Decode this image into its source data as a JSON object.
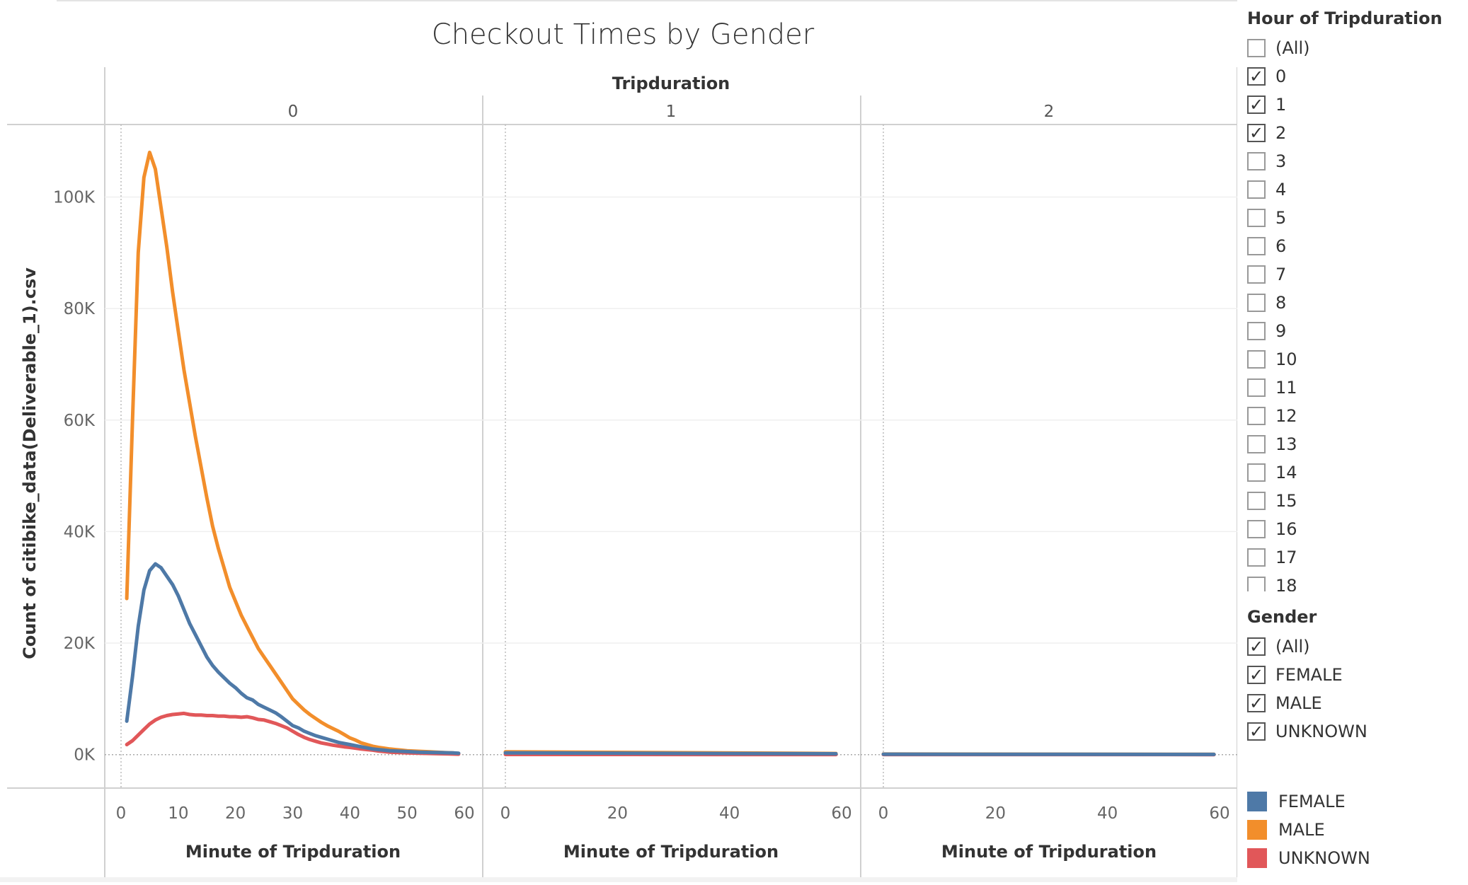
{
  "chart_data": {
    "type": "line",
    "title": "Checkout Times by Gender",
    "column_header": "Tripduration",
    "panes": [
      "0",
      "1",
      "2"
    ],
    "xlabel": "Minute of Tripduration",
    "ylabel": "Count of citibike_data(Deliverable_1).csv",
    "ylim": [
      -6000,
      113000
    ],
    "yticks": [
      0,
      20000,
      40000,
      60000,
      80000,
      100000
    ],
    "ytick_labels": [
      "0K",
      "20K",
      "40K",
      "60K",
      "80K",
      "100K"
    ],
    "pane0_xticks": [
      0,
      10,
      20,
      30,
      40,
      50,
      60
    ],
    "pane_xticks": [
      0,
      20,
      40,
      60
    ],
    "series": [
      {
        "name": "FEMALE",
        "color": "#4e79a7",
        "pane0": [
          [
            1,
            6000
          ],
          [
            2,
            14000
          ],
          [
            3,
            23000
          ],
          [
            4,
            29500
          ],
          [
            5,
            33000
          ],
          [
            6,
            34200
          ],
          [
            7,
            33500
          ],
          [
            8,
            32000
          ],
          [
            9,
            30500
          ],
          [
            10,
            28500
          ],
          [
            11,
            26000
          ],
          [
            12,
            23500
          ],
          [
            13,
            21500
          ],
          [
            14,
            19500
          ],
          [
            15,
            17500
          ],
          [
            16,
            16000
          ],
          [
            17,
            14800
          ],
          [
            18,
            13800
          ],
          [
            19,
            12800
          ],
          [
            20,
            12000
          ],
          [
            21,
            11000
          ],
          [
            22,
            10200
          ],
          [
            23,
            9800
          ],
          [
            24,
            9000
          ],
          [
            25,
            8500
          ],
          [
            26,
            8000
          ],
          [
            27,
            7500
          ],
          [
            28,
            6800
          ],
          [
            29,
            6000
          ],
          [
            30,
            5200
          ],
          [
            31,
            4800
          ],
          [
            32,
            4200
          ],
          [
            33,
            3800
          ],
          [
            34,
            3400
          ],
          [
            35,
            3100
          ],
          [
            36,
            2800
          ],
          [
            37,
            2500
          ],
          [
            38,
            2200
          ],
          [
            39,
            2000
          ],
          [
            40,
            1800
          ],
          [
            41,
            1600
          ],
          [
            42,
            1400
          ],
          [
            43,
            1200
          ],
          [
            44,
            1000
          ],
          [
            45,
            900
          ],
          [
            46,
            800
          ],
          [
            47,
            700
          ],
          [
            48,
            650
          ],
          [
            49,
            600
          ],
          [
            50,
            550
          ],
          [
            52,
            450
          ],
          [
            54,
            400
          ],
          [
            56,
            350
          ],
          [
            58,
            300
          ],
          [
            59,
            250
          ]
        ],
        "pane1": [
          [
            0,
            300
          ],
          [
            59,
            150
          ]
        ],
        "pane2": [
          [
            0,
            80
          ],
          [
            59,
            40
          ]
        ]
      },
      {
        "name": "MALE",
        "color": "#f28e2b",
        "pane0": [
          [
            1,
            28000
          ],
          [
            2,
            60000
          ],
          [
            3,
            90000
          ],
          [
            4,
            103500
          ],
          [
            5,
            108000
          ],
          [
            6,
            105000
          ],
          [
            7,
            98000
          ],
          [
            8,
            91000
          ],
          [
            9,
            83000
          ],
          [
            10,
            76000
          ],
          [
            11,
            69000
          ],
          [
            12,
            63000
          ],
          [
            13,
            57000
          ],
          [
            14,
            51500
          ],
          [
            15,
            46000
          ],
          [
            16,
            41000
          ],
          [
            17,
            37000
          ],
          [
            18,
            33500
          ],
          [
            19,
            30000
          ],
          [
            20,
            27500
          ],
          [
            21,
            25000
          ],
          [
            22,
            23000
          ],
          [
            23,
            21000
          ],
          [
            24,
            19000
          ],
          [
            25,
            17500
          ],
          [
            26,
            16000
          ],
          [
            27,
            14500
          ],
          [
            28,
            13000
          ],
          [
            29,
            11500
          ],
          [
            30,
            10000
          ],
          [
            31,
            9000
          ],
          [
            32,
            8000
          ],
          [
            33,
            7200
          ],
          [
            34,
            6500
          ],
          [
            35,
            5800
          ],
          [
            36,
            5200
          ],
          [
            37,
            4700
          ],
          [
            38,
            4200
          ],
          [
            39,
            3600
          ],
          [
            40,
            3000
          ],
          [
            41,
            2600
          ],
          [
            42,
            2100
          ],
          [
            43,
            1800
          ],
          [
            44,
            1500
          ],
          [
            45,
            1300
          ],
          [
            46,
            1150
          ],
          [
            47,
            1000
          ],
          [
            48,
            900
          ],
          [
            49,
            800
          ],
          [
            50,
            700
          ],
          [
            52,
            600
          ],
          [
            54,
            500
          ],
          [
            56,
            400
          ],
          [
            58,
            300
          ],
          [
            59,
            200
          ]
        ],
        "pane1": [
          [
            0,
            500
          ],
          [
            59,
            200
          ]
        ],
        "pane2": [
          [
            0,
            100
          ],
          [
            59,
            50
          ]
        ]
      },
      {
        "name": "UNKNOWN",
        "color": "#e15759",
        "pane0": [
          [
            1,
            1800
          ],
          [
            2,
            2500
          ],
          [
            3,
            3500
          ],
          [
            4,
            4500
          ],
          [
            5,
            5500
          ],
          [
            6,
            6200
          ],
          [
            7,
            6700
          ],
          [
            8,
            7000
          ],
          [
            9,
            7200
          ],
          [
            10,
            7300
          ],
          [
            11,
            7400
          ],
          [
            12,
            7200
          ],
          [
            13,
            7100
          ],
          [
            14,
            7100
          ],
          [
            15,
            7000
          ],
          [
            16,
            7000
          ],
          [
            17,
            6900
          ],
          [
            18,
            6900
          ],
          [
            19,
            6800
          ],
          [
            20,
            6800
          ],
          [
            21,
            6700
          ],
          [
            22,
            6800
          ],
          [
            23,
            6600
          ],
          [
            24,
            6300
          ],
          [
            25,
            6200
          ],
          [
            26,
            5900
          ],
          [
            27,
            5600
          ],
          [
            28,
            5200
          ],
          [
            29,
            4800
          ],
          [
            30,
            4200
          ],
          [
            31,
            3600
          ],
          [
            32,
            3100
          ],
          [
            33,
            2700
          ],
          [
            34,
            2400
          ],
          [
            35,
            2100
          ],
          [
            36,
            1900
          ],
          [
            37,
            1700
          ],
          [
            38,
            1550
          ],
          [
            39,
            1400
          ],
          [
            40,
            1300
          ],
          [
            41,
            1150
          ],
          [
            42,
            1000
          ],
          [
            43,
            900
          ],
          [
            44,
            800
          ],
          [
            45,
            650
          ],
          [
            46,
            550
          ],
          [
            47,
            450
          ],
          [
            48,
            400
          ],
          [
            49,
            350
          ],
          [
            50,
            300
          ],
          [
            52,
            250
          ],
          [
            54,
            200
          ],
          [
            56,
            150
          ],
          [
            58,
            100
          ],
          [
            59,
            80
          ]
        ],
        "pane1": [
          [
            0,
            30
          ],
          [
            59,
            10
          ]
        ],
        "pane2": [
          [
            0,
            10
          ],
          [
            59,
            5
          ]
        ]
      }
    ]
  },
  "filters": {
    "hour": {
      "title": "Hour of Tripduration",
      "items": [
        {
          "label": "(All)",
          "checked": false
        },
        {
          "label": "0",
          "checked": true
        },
        {
          "label": "1",
          "checked": true
        },
        {
          "label": "2",
          "checked": true
        },
        {
          "label": "3",
          "checked": false
        },
        {
          "label": "4",
          "checked": false
        },
        {
          "label": "5",
          "checked": false
        },
        {
          "label": "6",
          "checked": false
        },
        {
          "label": "7",
          "checked": false
        },
        {
          "label": "8",
          "checked": false
        },
        {
          "label": "9",
          "checked": false
        },
        {
          "label": "10",
          "checked": false
        },
        {
          "label": "11",
          "checked": false
        },
        {
          "label": "12",
          "checked": false
        },
        {
          "label": "13",
          "checked": false
        },
        {
          "label": "14",
          "checked": false
        },
        {
          "label": "15",
          "checked": false
        },
        {
          "label": "16",
          "checked": false
        },
        {
          "label": "17",
          "checked": false
        },
        {
          "label": "18",
          "checked": false
        }
      ]
    },
    "gender": {
      "title": "Gender",
      "items": [
        {
          "label": "(All)",
          "checked": true
        },
        {
          "label": "FEMALE",
          "checked": true
        },
        {
          "label": "MALE",
          "checked": true
        },
        {
          "label": "UNKNOWN",
          "checked": true
        }
      ]
    }
  },
  "legend": [
    {
      "label": "FEMALE",
      "color": "#4e79a7"
    },
    {
      "label": "MALE",
      "color": "#f28e2b"
    },
    {
      "label": "UNKNOWN",
      "color": "#e15759"
    }
  ]
}
